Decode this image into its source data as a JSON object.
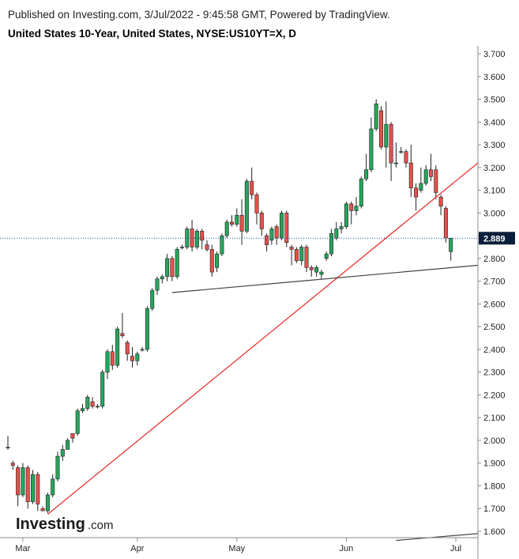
{
  "header": {
    "published": "Published on Investing.com, 3/Jul/2022 - 9:45:58 GMT, Powered by TradingView.",
    "title": "United States 10-Year, United States, NYSE:US10YT=X, D"
  },
  "brand": {
    "word": "Investing",
    "suffix": ".com"
  },
  "colors": {
    "up": "#26a65b",
    "down": "#e8504a",
    "trendline": "#e8231f",
    "support": "#444444",
    "price_line": "#1f4fb0",
    "label_bg": "#0b1f3a"
  },
  "chart_data": {
    "type": "candlestick",
    "title": "United States 10-Year, United States, NYSE:US10YT=X, D",
    "ylim": [
      1.56,
      3.74
    ],
    "y_ticks": [
      "1.600",
      "1.700",
      "1.800",
      "1.900",
      "2.000",
      "2.100",
      "2.200",
      "2.300",
      "2.400",
      "2.500",
      "2.600",
      "2.700",
      "2.800",
      "2.900",
      "3.000",
      "3.100",
      "3.200",
      "3.300",
      "3.400",
      "3.500",
      "3.600",
      "3.700"
    ],
    "x_ticks": [
      {
        "label": "Mar",
        "index": 3
      },
      {
        "label": "Apr",
        "index": 26
      },
      {
        "label": "May",
        "index": 46
      },
      {
        "label": "Jun",
        "index": 68
      },
      {
        "label": "Jul",
        "index": 90
      }
    ],
    "last_price": 2.889,
    "last_price_label": "2.889",
    "candles": [
      [
        1.97,
        2.02,
        1.96,
        1.97
      ],
      [
        1.9,
        1.91,
        1.87,
        1.89
      ],
      [
        1.88,
        1.89,
        1.71,
        1.76
      ],
      [
        1.76,
        1.9,
        1.75,
        1.88
      ],
      [
        1.88,
        1.89,
        1.7,
        1.73
      ],
      [
        1.73,
        1.87,
        1.72,
        1.85
      ],
      [
        1.85,
        1.86,
        1.69,
        1.72
      ],
      [
        1.7,
        1.71,
        1.69,
        1.69
      ],
      [
        1.69,
        1.77,
        1.68,
        1.76
      ],
      [
        1.76,
        1.85,
        1.75,
        1.83
      ],
      [
        1.83,
        1.95,
        1.82,
        1.93
      ],
      [
        1.93,
        1.98,
        1.91,
        1.96
      ],
      [
        1.96,
        2.01,
        1.96,
        2.0
      ],
      [
        2.03,
        2.03,
        1.99,
        2.01
      ],
      [
        2.03,
        2.14,
        2.02,
        2.13
      ],
      [
        2.13,
        2.16,
        2.12,
        2.14
      ],
      [
        2.14,
        2.2,
        2.13,
        2.19
      ],
      [
        2.17,
        2.19,
        2.14,
        2.15
      ],
      [
        2.15,
        2.16,
        2.14,
        2.15
      ],
      [
        2.15,
        2.31,
        2.14,
        2.3
      ],
      [
        2.3,
        2.4,
        2.27,
        2.39
      ],
      [
        2.39,
        2.42,
        2.31,
        2.33
      ],
      [
        2.33,
        2.5,
        2.32,
        2.49
      ],
      [
        2.47,
        2.56,
        2.45,
        2.46
      ],
      [
        2.43,
        2.44,
        2.35,
        2.38
      ],
      [
        2.37,
        2.41,
        2.32,
        2.35
      ],
      [
        2.35,
        2.39,
        2.33,
        2.38
      ],
      [
        2.4,
        2.41,
        2.39,
        2.4
      ],
      [
        2.4,
        2.59,
        2.39,
        2.58
      ],
      [
        2.58,
        2.67,
        2.57,
        2.66
      ],
      [
        2.66,
        2.72,
        2.64,
        2.71
      ],
      [
        2.71,
        2.73,
        2.69,
        2.72
      ],
      [
        2.72,
        2.82,
        2.7,
        2.8
      ],
      [
        2.8,
        2.81,
        2.7,
        2.72
      ],
      [
        2.72,
        2.85,
        2.71,
        2.84
      ],
      [
        2.85,
        2.86,
        2.84,
        2.85
      ],
      [
        2.85,
        2.94,
        2.84,
        2.93
      ],
      [
        2.93,
        2.97,
        2.83,
        2.85
      ],
      [
        2.85,
        2.93,
        2.84,
        2.92
      ],
      [
        2.92,
        2.93,
        2.84,
        2.88
      ],
      [
        2.86,
        2.88,
        2.83,
        2.84
      ],
      [
        2.84,
        2.86,
        2.72,
        2.74
      ],
      [
        2.76,
        2.83,
        2.74,
        2.82
      ],
      [
        2.82,
        2.91,
        2.81,
        2.9
      ],
      [
        2.9,
        2.97,
        2.89,
        2.96
      ],
      [
        2.96,
        2.99,
        2.94,
        2.95
      ],
      [
        2.95,
        3.02,
        2.94,
        2.99
      ],
      [
        2.99,
        3.06,
        2.86,
        2.92
      ],
      [
        2.92,
        3.15,
        2.91,
        3.14
      ],
      [
        3.14,
        3.2,
        3.06,
        3.08
      ],
      [
        3.08,
        3.09,
        2.95,
        3.0
      ],
      [
        3.0,
        3.01,
        2.9,
        2.93
      ],
      [
        2.9,
        2.91,
        2.83,
        2.86
      ],
      [
        2.88,
        2.94,
        2.86,
        2.93
      ],
      [
        2.94,
        2.95,
        2.86,
        2.89
      ],
      [
        2.89,
        3.01,
        2.88,
        3.0
      ],
      [
        3.0,
        3.01,
        2.85,
        2.87
      ],
      [
        2.85,
        2.86,
        2.77,
        2.84
      ],
      [
        2.84,
        2.85,
        2.78,
        2.79
      ],
      [
        2.79,
        2.86,
        2.77,
        2.85
      ],
      [
        2.85,
        2.86,
        2.74,
        2.76
      ],
      [
        2.76,
        2.77,
        2.72,
        2.75
      ],
      [
        2.74,
        2.77,
        2.72,
        2.76
      ],
      [
        2.73,
        2.75,
        2.71,
        2.74
      ],
      [
        2.8,
        2.83,
        2.79,
        2.82
      ],
      [
        2.82,
        2.93,
        2.81,
        2.91
      ],
      [
        2.89,
        2.96,
        2.88,
        2.93
      ],
      [
        2.93,
        2.96,
        2.91,
        2.94
      ],
      [
        2.94,
        3.05,
        2.93,
        3.04
      ],
      [
        3.04,
        3.05,
        2.95,
        3.01
      ],
      [
        3.01,
        3.07,
        2.99,
        3.03
      ],
      [
        3.03,
        3.16,
        3.02,
        3.15
      ],
      [
        3.15,
        3.26,
        3.14,
        3.19
      ],
      [
        3.19,
        3.42,
        3.18,
        3.37
      ],
      [
        3.37,
        3.5,
        3.36,
        3.48
      ],
      [
        3.45,
        3.47,
        3.28,
        3.29
      ],
      [
        3.29,
        3.49,
        3.2,
        3.39
      ],
      [
        3.39,
        3.4,
        3.14,
        3.22
      ],
      [
        3.22,
        3.31,
        3.2,
        3.22
      ],
      [
        3.27,
        3.29,
        3.26,
        3.27
      ],
      [
        3.27,
        3.28,
        3.2,
        3.22
      ],
      [
        3.22,
        3.3,
        3.07,
        3.11
      ],
      [
        3.11,
        3.13,
        3.01,
        3.07
      ],
      [
        3.1,
        3.2,
        3.09,
        3.13
      ],
      [
        3.13,
        3.21,
        3.12,
        3.19
      ],
      [
        3.19,
        3.26,
        3.14,
        3.16
      ],
      [
        3.19,
        3.21,
        3.06,
        3.09
      ],
      [
        3.07,
        3.08,
        2.99,
        3.03
      ],
      [
        3.02,
        3.03,
        2.87,
        2.89
      ],
      [
        2.83,
        2.89,
        2.79,
        2.889
      ]
    ],
    "trendlines": [
      {
        "name": "uptrend",
        "from": {
          "index": 8,
          "price": 1.675
        },
        "to": {
          "index": 101,
          "price": 3.22
        }
      },
      {
        "name": "support",
        "from": {
          "index": 33,
          "price": 2.65
        },
        "to": {
          "index": 101,
          "price": 2.77
        }
      },
      {
        "name": "lower",
        "from": {
          "index": 78,
          "price": 1.56
        },
        "to": {
          "index": 101,
          "price": 1.59
        }
      }
    ]
  }
}
